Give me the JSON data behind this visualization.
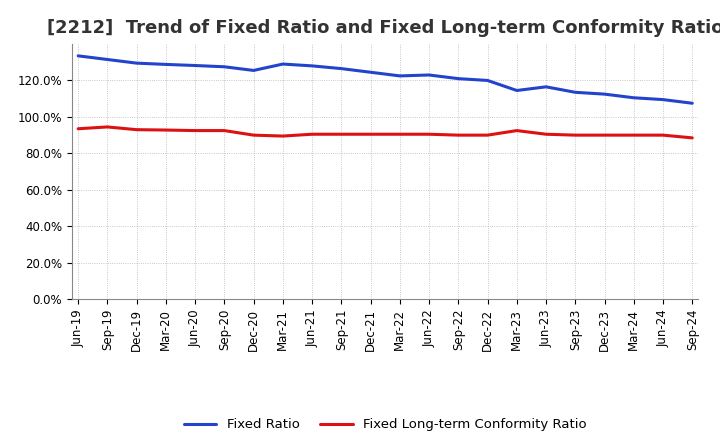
{
  "title": "[2212]  Trend of Fixed Ratio and Fixed Long-term Conformity Ratio",
  "x_labels": [
    "Jun-19",
    "Sep-19",
    "Dec-19",
    "Mar-20",
    "Jun-20",
    "Sep-20",
    "Dec-20",
    "Mar-21",
    "Jun-21",
    "Sep-21",
    "Dec-21",
    "Mar-22",
    "Jun-22",
    "Sep-22",
    "Dec-22",
    "Mar-23",
    "Jun-23",
    "Sep-23",
    "Dec-23",
    "Mar-24",
    "Jun-24",
    "Sep-24"
  ],
  "fixed_ratio": [
    133.5,
    131.5,
    129.5,
    128.8,
    128.2,
    127.5,
    125.5,
    129.0,
    128.0,
    126.5,
    124.5,
    122.5,
    123.0,
    121.0,
    120.0,
    114.5,
    116.5,
    113.5,
    112.5,
    110.5,
    109.5,
    107.5
  ],
  "fixed_lt_ratio": [
    93.5,
    94.5,
    93.0,
    92.8,
    92.5,
    92.5,
    90.0,
    89.5,
    90.5,
    90.5,
    90.5,
    90.5,
    90.5,
    90.0,
    90.0,
    92.5,
    90.5,
    90.0,
    90.0,
    90.0,
    90.0,
    88.5
  ],
  "line_color_blue": "#2244cc",
  "line_color_red": "#dd1111",
  "background_color": "#ffffff",
  "grid_color": "#999999",
  "ylim": [
    0,
    140
  ],
  "yticks": [
    0,
    20,
    40,
    60,
    80,
    100,
    120
  ],
  "legend_fixed_ratio": "Fixed Ratio",
  "legend_fixed_lt": "Fixed Long-term Conformity Ratio",
  "title_fontsize": 13,
  "tick_fontsize": 8.5,
  "linewidth": 2.2
}
